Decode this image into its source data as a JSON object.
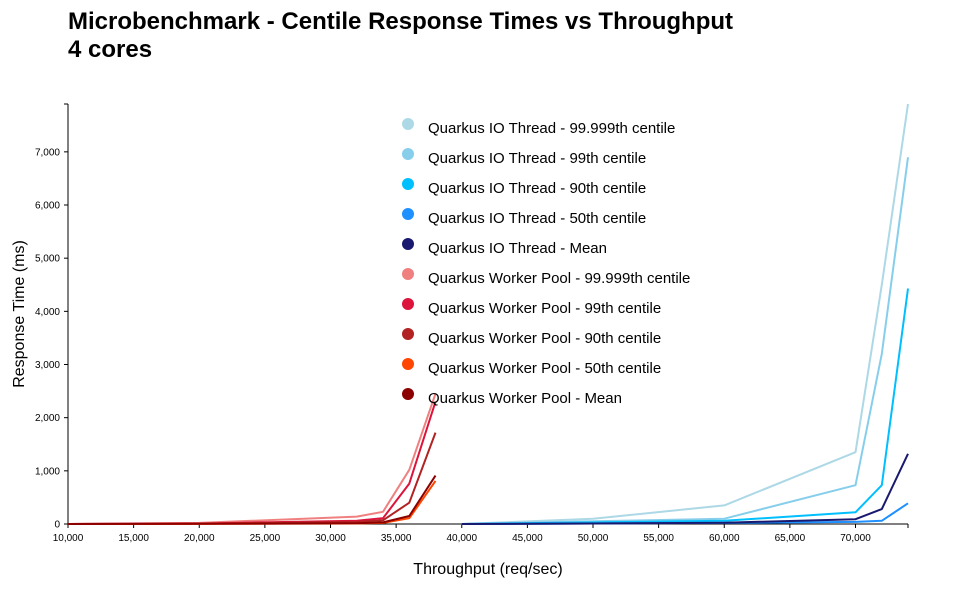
{
  "chart_data": {
    "type": "line",
    "title": "Microbenchmark - Centile Response Times vs Throughput",
    "subtitle": "4 cores",
    "xlabel": "Throughput (req/sec)",
    "ylabel": "Response Time (ms)",
    "xlim": [
      10000,
      74000
    ],
    "ylim": [
      0,
      7900
    ],
    "x_ticks": [
      "10,000",
      "15,000",
      "20,000",
      "25,000",
      "30,000",
      "35,000",
      "40,000",
      "45,000",
      "50,000",
      "55,000",
      "60,000",
      "65,000",
      "70,000"
    ],
    "y_ticks": [
      "0",
      "1,000",
      "2,000",
      "3,000",
      "4,000",
      "5,000",
      "6,000",
      "7,000"
    ],
    "grid": false,
    "legend_position": "top-center",
    "series": [
      {
        "name": "Quarkus IO Thread - 99.999th centile",
        "color": "#add8e6",
        "x": [
          40000,
          50000,
          60000,
          70000,
          72000,
          74000
        ],
        "y": [
          0,
          100,
          350,
          1350,
          4500,
          7900
        ]
      },
      {
        "name": "Quarkus IO Thread - 99th centile",
        "color": "#87ceeb",
        "x": [
          40000,
          50000,
          60000,
          70000,
          72000,
          74000
        ],
        "y": [
          0,
          50,
          100,
          730,
          3200,
          6900
        ]
      },
      {
        "name": "Quarkus IO Thread - 90th centile",
        "color": "#00bfff",
        "x": [
          40000,
          50000,
          60000,
          70000,
          72000,
          74000
        ],
        "y": [
          0,
          30,
          60,
          220,
          730,
          4430
        ]
      },
      {
        "name": "Quarkus IO Thread - 50th centile",
        "color": "#1e90ff",
        "x": [
          40000,
          50000,
          60000,
          70000,
          72000,
          74000
        ],
        "y": [
          0,
          10,
          20,
          40,
          60,
          390
        ]
      },
      {
        "name": "Quarkus IO Thread - Mean",
        "color": "#191970",
        "x": [
          40000,
          50000,
          60000,
          70000,
          72000,
          74000
        ],
        "y": [
          0,
          10,
          25,
          90,
          280,
          1320
        ]
      },
      {
        "name": "Quarkus Worker Pool - 99.999th centile",
        "color": "#f08080",
        "x": [
          10000,
          20000,
          32000,
          34000,
          36000,
          38000
        ],
        "y": [
          0,
          20,
          140,
          230,
          1020,
          2450
        ]
      },
      {
        "name": "Quarkus Worker Pool - 99th centile",
        "color": "#dc143c",
        "x": [
          10000,
          20000,
          32000,
          34000,
          36000,
          38000
        ],
        "y": [
          0,
          10,
          60,
          110,
          760,
          2300
        ]
      },
      {
        "name": "Quarkus Worker Pool - 90th centile",
        "color": "#b22222",
        "x": [
          10000,
          20000,
          32000,
          34000,
          36000,
          38000
        ],
        "y": [
          0,
          5,
          40,
          70,
          400,
          1720
        ]
      },
      {
        "name": "Quarkus Worker Pool - 50th centile",
        "color": "#ff4500",
        "x": [
          10000,
          20000,
          32000,
          34000,
          36000,
          38000
        ],
        "y": [
          0,
          2,
          10,
          20,
          110,
          810
        ]
      },
      {
        "name": "Quarkus Worker Pool - Mean",
        "color": "#8b0000",
        "x": [
          10000,
          20000,
          32000,
          34000,
          36000,
          38000
        ],
        "y": [
          0,
          3,
          15,
          30,
          150,
          910
        ]
      }
    ]
  }
}
